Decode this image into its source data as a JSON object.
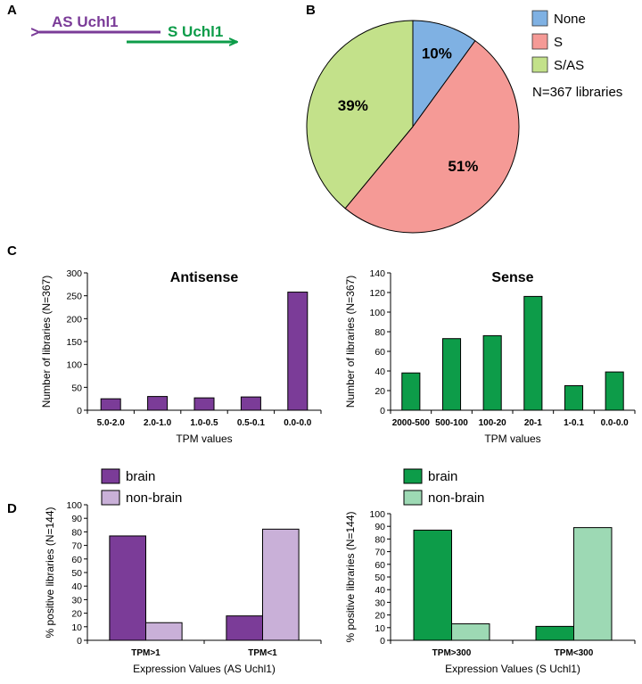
{
  "colors": {
    "purple": "#7b3c98",
    "purple_light": "#c9b0d8",
    "green": "#0d9c49",
    "green_light": "#9dd9b4",
    "pie_none": "#7fb1e3",
    "pie_s": "#f59a96",
    "pie_sas": "#c3e18a"
  },
  "panel_letters": {
    "a": "A",
    "b": "B",
    "c": "C",
    "d": "D"
  },
  "panel_a": {
    "as_label": "AS Uchl1",
    "s_label": "S Uchl1"
  },
  "chart_data": [
    {
      "id": "pie",
      "type": "pie",
      "slices": [
        {
          "label": "None",
          "value": 10,
          "text": "10%",
          "color": "#7fb1e3"
        },
        {
          "label": "S",
          "value": 51,
          "text": "51%",
          "color": "#f59a96"
        },
        {
          "label": "S/AS",
          "value": 39,
          "text": "39%",
          "color": "#c3e18a"
        }
      ],
      "note": "N=367 libraries"
    },
    {
      "id": "antisense",
      "type": "bar",
      "title": "Antisense",
      "xlabel": "TPM values",
      "ylabel": "Number of libraries (N=367)",
      "ylim": [
        0,
        300
      ],
      "yticks": [
        0,
        50,
        100,
        150,
        200,
        250,
        300
      ],
      "categories": [
        "5.0-2.0",
        "2.0-1.0",
        "1.0-0.5",
        "0.5-0.1",
        "0.0-0.0"
      ],
      "values": [
        25,
        30,
        27,
        29,
        258
      ],
      "color": "#7b3c98"
    },
    {
      "id": "sense",
      "type": "bar",
      "title": "Sense",
      "xlabel": "TPM values",
      "ylabel": "Number of libraries (N=367)",
      "ylim": [
        0,
        140
      ],
      "yticks": [
        0,
        20,
        40,
        60,
        80,
        100,
        120,
        140
      ],
      "categories": [
        "2000-500",
        "500-100",
        "100-20",
        "20-1",
        "1-0.1",
        "0.0-0.0"
      ],
      "values": [
        38,
        73,
        76,
        116,
        25,
        39
      ],
      "color": "#0d9c49"
    },
    {
      "id": "as_tissue",
      "type": "bar",
      "xlabel": "Expression Values (AS Uchl1)",
      "ylabel": "% positive libraries (N=144)",
      "ylim": [
        0,
        100
      ],
      "yticks": [
        0,
        10,
        20,
        30,
        40,
        50,
        60,
        70,
        80,
        90,
        100
      ],
      "categories": [
        "TPM>1",
        "TPM<1"
      ],
      "series": [
        {
          "name": "brain",
          "values": [
            77,
            18
          ],
          "color": "#7b3c98"
        },
        {
          "name": "non-brain",
          "values": [
            13,
            82
          ],
          "color": "#c9b0d8"
        }
      ],
      "legend": "top-left"
    },
    {
      "id": "s_tissue",
      "type": "bar",
      "xlabel": "Expression Values (S Uchl1)",
      "ylabel": "% positive libraries (N=144)",
      "ylim": [
        0,
        100
      ],
      "yticks": [
        0,
        10,
        20,
        30,
        40,
        50,
        60,
        70,
        80,
        90,
        100
      ],
      "categories": [
        "TPM>300",
        "TPM<300"
      ],
      "series": [
        {
          "name": "brain",
          "values": [
            87,
            11
          ],
          "color": "#0d9c49"
        },
        {
          "name": "non-brain",
          "values": [
            13,
            89
          ],
          "color": "#9dd9b4"
        }
      ],
      "legend": "top-left"
    }
  ]
}
